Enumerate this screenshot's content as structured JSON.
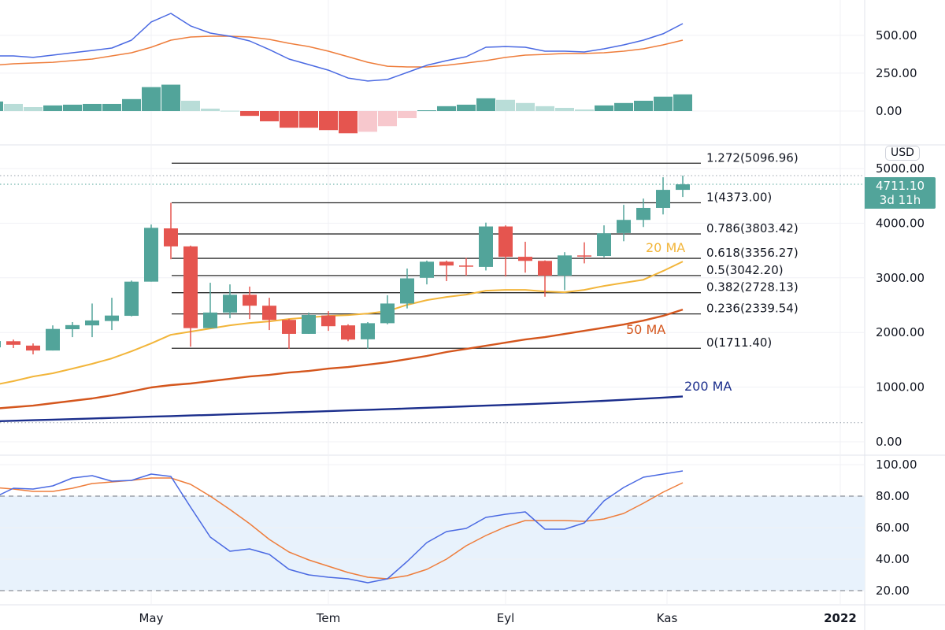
{
  "colors": {
    "up": "#52a49a",
    "down": "#e5554f",
    "up_light": "#b9ddd8",
    "down_light": "#f7c8cd",
    "macd": "#4a69e2",
    "signal": "#ee7d3b",
    "ma20": "#f2b53a",
    "ma50": "#d4561d",
    "ma200": "#1b2e8c",
    "stoch_k": "#4a69e2",
    "stoch_d": "#ee7d3b",
    "stoch_band": "#e8f2fc",
    "fib_line": "#2a2a2a",
    "grid": "#f0f1f5"
  },
  "chart_data": [
    {
      "pane": "macd",
      "type": "line+bar",
      "y_ticks": [
        "500.00",
        "250.00",
        "0.00"
      ],
      "y_tick_values": [
        500,
        250,
        0
      ],
      "series": [
        {
          "values": [
            364,
            364,
            354,
            369,
            385,
            400,
            416,
            468,
            588,
            645,
            562,
            515,
            494,
            463,
            406,
            343,
            307,
            270,
            218,
            198,
            208,
            255,
            302,
            333,
            359,
            421,
            426,
            421,
            395,
            395,
            390,
            411,
            437,
            468,
            510,
            577
          ]
        },
        {
          "values": [
            302,
            312,
            317,
            322,
            333,
            343,
            364,
            385,
            421,
            468,
            489,
            494,
            494,
            489,
            473,
            447,
            426,
            395,
            359,
            322,
            296,
            291,
            291,
            302,
            317,
            333,
            354,
            369,
            374,
            380,
            380,
            385,
            395,
            411,
            437,
            468
          ]
        }
      ],
      "histogram": [
        63,
        47,
        26,
        37,
        42,
        47,
        47,
        79,
        158,
        174,
        68,
        16,
        2,
        -32,
        -68,
        -110,
        -110,
        -126,
        -147,
        -137,
        -100,
        -47,
        5,
        32,
        42,
        84,
        74,
        53,
        32,
        21,
        10,
        37,
        53,
        68,
        95,
        110
      ]
    },
    {
      "pane": "price",
      "type": "candlestick",
      "currency": "USD",
      "ylim": [
        0,
        5300
      ],
      "y_ticks": [
        "5000.00",
        "4000.00",
        "3000.00",
        "2000.00",
        "1000.00",
        "0.00"
      ],
      "y_tick_values": [
        5000,
        4000,
        3000,
        2000,
        1000,
        0
      ],
      "last_price": "4711.10",
      "countdown": "3d 11h",
      "candles_ohlc": [
        [
          1728,
          1870,
          1700,
          1843
        ],
        [
          1840,
          1870,
          1715,
          1775
        ],
        [
          1760,
          1800,
          1600,
          1670
        ],
        [
          1670,
          2130,
          1670,
          2065
        ],
        [
          2060,
          2190,
          1915,
          2135
        ],
        [
          2130,
          2530,
          1915,
          2220
        ],
        [
          2210,
          2635,
          2045,
          2310
        ],
        [
          2305,
          2950,
          2295,
          2930
        ],
        [
          2930,
          3975,
          2930,
          3915
        ],
        [
          3905,
          4373,
          3340,
          3575
        ],
        [
          3575,
          3590,
          1740,
          2080
        ],
        [
          2080,
          2910,
          2080,
          2365
        ],
        [
          2365,
          2880,
          2260,
          2690
        ],
        [
          2690,
          2840,
          2245,
          2490
        ],
        [
          2490,
          2635,
          2045,
          2230
        ],
        [
          2230,
          2250,
          1700,
          1975
        ],
        [
          1975,
          2365,
          1975,
          2320
        ],
        [
          2310,
          2390,
          2030,
          2115
        ],
        [
          2130,
          2150,
          1840,
          1870
        ],
        [
          1875,
          2190,
          1700,
          2170
        ],
        [
          2170,
          2680,
          2150,
          2530
        ],
        [
          2530,
          3170,
          2440,
          2990
        ],
        [
          3000,
          3315,
          2880,
          3295
        ],
        [
          3295,
          3315,
          2940,
          3225
        ],
        [
          3225,
          3365,
          3040,
          3205
        ],
        [
          3200,
          4010,
          3135,
          3940
        ],
        [
          3940,
          3960,
          3025,
          3385
        ],
        [
          3385,
          3660,
          3095,
          3310
        ],
        [
          3310,
          3320,
          2655,
          3040
        ],
        [
          3040,
          3470,
          2775,
          3410
        ],
        [
          3410,
          3650,
          3265,
          3400
        ],
        [
          3400,
          3960,
          3375,
          3815
        ],
        [
          3820,
          4335,
          3670,
          4060
        ],
        [
          4060,
          4450,
          3930,
          4280
        ],
        [
          4280,
          4840,
          4160,
          4610
        ],
        [
          4610,
          4870,
          4480,
          4711.1
        ]
      ],
      "moving_averages": [
        {
          "name": "20 MA",
          "values": [
            1037,
            1109,
            1195,
            1253,
            1339,
            1426,
            1526,
            1656,
            1800,
            1958,
            2016,
            2074,
            2131,
            2174,
            2203,
            2246,
            2275,
            2304,
            2318,
            2347,
            2390,
            2506,
            2592,
            2650,
            2693,
            2765,
            2779,
            2779,
            2750,
            2736,
            2779,
            2851,
            2909,
            2966,
            3125,
            3298
          ]
        },
        {
          "name": "50 MA",
          "values": [
            605,
            634,
            662,
            706,
            749,
            792,
            850,
            922,
            994,
            1037,
            1066,
            1109,
            1152,
            1195,
            1224,
            1267,
            1296,
            1339,
            1368,
            1411,
            1454,
            1512,
            1570,
            1642,
            1699,
            1757,
            1814,
            1872,
            1915,
            1973,
            2030,
            2088,
            2146,
            2218,
            2304,
            2419
          ]
        },
        {
          "name": "200 MA",
          "values": [
            375,
            385,
            395,
            405,
            415,
            426,
            437,
            448,
            459,
            470,
            481,
            492,
            503,
            514,
            525,
            537,
            549,
            561,
            573,
            585,
            597,
            609,
            622,
            635,
            648,
            661,
            674,
            688,
            702,
            716,
            732,
            749,
            768,
            788,
            809,
            830
          ]
        }
      ],
      "fibonacci": [
        {
          "label": "1.272(5096.96)",
          "level": 1.272,
          "price": 5096.96
        },
        {
          "label": "1(4373.00)",
          "level": 1,
          "price": 4373.0
        },
        {
          "label": "0.786(3803.42)",
          "level": 0.786,
          "price": 3803.42
        },
        {
          "label": "0.618(3356.27)",
          "level": 0.618,
          "price": 3356.27
        },
        {
          "label": "0.5(3042.20)",
          "level": 0.5,
          "price": 3042.2
        },
        {
          "label": "0.382(2728.13)",
          "level": 0.382,
          "price": 2728.13
        },
        {
          "label": "0.236(2339.54)",
          "level": 0.236,
          "price": 2339.54
        },
        {
          "label": "0(1711.40)",
          "level": 0,
          "price": 1711.4
        }
      ]
    },
    {
      "pane": "stochastic",
      "type": "line",
      "ylim": [
        10,
        100
      ],
      "y_ticks": [
        "100.00",
        "80.00",
        "60.00",
        "40.00",
        "20.00"
      ],
      "y_tick_values": [
        100,
        80,
        60,
        40,
        20
      ],
      "bands": [
        80,
        20
      ],
      "series": [
        {
          "values": [
            79,
            85,
            84.5,
            86.5,
            91.5,
            93,
            89.5,
            90,
            94,
            92.5,
            73,
            54,
            45,
            46.5,
            43,
            33.5,
            30,
            28.5,
            27.5,
            25,
            27.5,
            38.5,
            50.5,
            57.5,
            59.5,
            66.5,
            68.5,
            70,
            59,
            59,
            63,
            77,
            85.5,
            92,
            94,
            96
          ]
        },
        {
          "values": [
            85.5,
            84.5,
            83,
            83,
            85,
            88,
            89,
            90,
            91.5,
            91.5,
            87.5,
            80,
            71.5,
            62.5,
            52.5,
            44.5,
            39.5,
            35.5,
            31.5,
            28.5,
            27.5,
            29.5,
            33.5,
            40,
            48.5,
            55,
            60.5,
            64.5,
            64.5,
            64.5,
            64,
            65.5,
            69,
            75.5,
            82.5,
            88.5
          ]
        }
      ]
    }
  ],
  "time_axis": [
    {
      "label": "May",
      "bar": 8
    },
    {
      "label": "Tem",
      "bar": 17
    },
    {
      "label": "Eyl",
      "bar": 26
    },
    {
      "label": "Kas",
      "bar": 34.2
    },
    {
      "label": "2022",
      "bar": 43
    }
  ]
}
